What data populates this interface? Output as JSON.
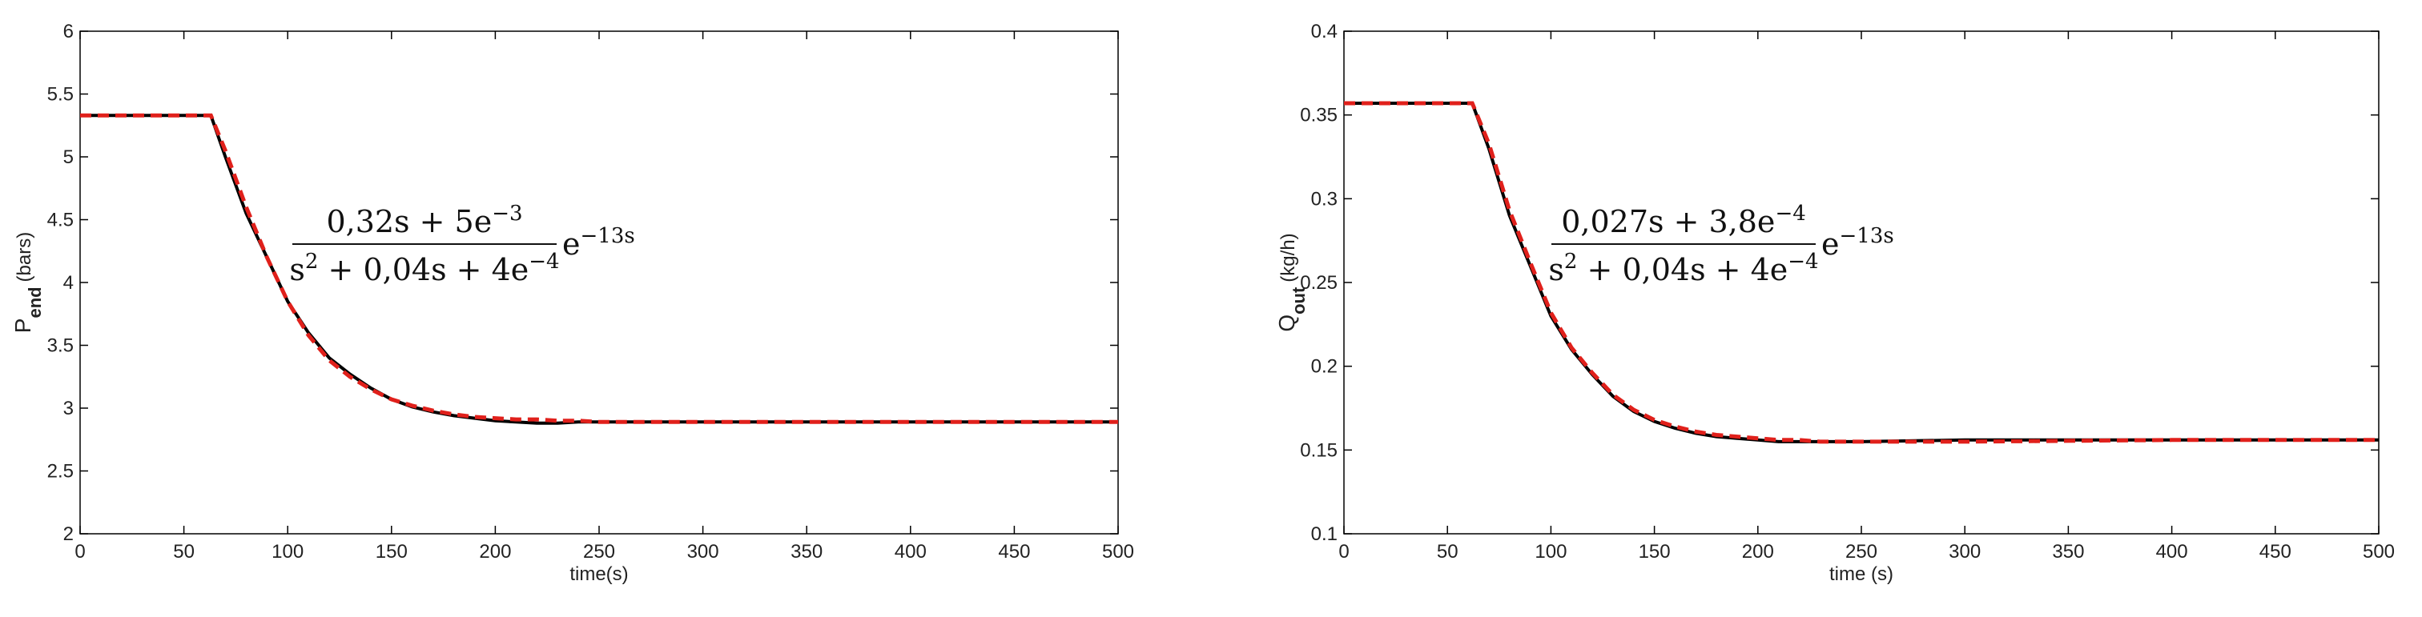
{
  "chart_data": [
    {
      "type": "line",
      "xlabel": "time(s)",
      "ylabel": {
        "main": "P",
        "sub": "end",
        "unit": "(bars)"
      },
      "annotation": {
        "numerator": [
          {
            "text": "0,32s + 5e",
            "sup": "−3"
          }
        ],
        "denominator": [
          {
            "text": "s",
            "sup": "2"
          },
          {
            "text": " + 0,04s + 4e",
            "sup": "−4"
          }
        ],
        "factor": [
          {
            "text": "e",
            "sup": "−13s"
          }
        ]
      },
      "x": [
        0,
        63,
        70,
        80,
        90,
        100,
        110,
        120,
        130,
        140,
        150,
        160,
        170,
        180,
        190,
        200,
        210,
        220,
        230,
        240,
        250,
        300,
        400,
        500
      ],
      "series": [
        {
          "color": "#000000",
          "style": "solid",
          "values": [
            5.33,
            5.33,
            5.0,
            4.55,
            4.2,
            3.85,
            3.6,
            3.4,
            3.27,
            3.16,
            3.07,
            3.01,
            2.97,
            2.94,
            2.92,
            2.9,
            2.89,
            2.88,
            2.88,
            2.89,
            2.89,
            2.89,
            2.89,
            2.89
          ]
        },
        {
          "color": "#e0201b",
          "style": "dashed",
          "values": [
            5.33,
            5.33,
            5.05,
            4.6,
            4.2,
            3.85,
            3.58,
            3.38,
            3.25,
            3.15,
            3.07,
            3.02,
            2.98,
            2.95,
            2.93,
            2.92,
            2.91,
            2.91,
            2.9,
            2.9,
            2.89,
            2.89,
            2.89,
            2.89
          ]
        }
      ],
      "xlim": [
        0,
        500
      ],
      "xticks": [
        0,
        50,
        100,
        150,
        200,
        250,
        300,
        350,
        400,
        450,
        500
      ],
      "ylim": [
        2,
        6
      ],
      "yticks": [
        2,
        2.5,
        3,
        3.5,
        4,
        4.5,
        5,
        5.5,
        6
      ]
    },
    {
      "type": "line",
      "xlabel": "time (s)",
      "ylabel": {
        "main": "Q",
        "sub": "out",
        "unit": "(kg/h)"
      },
      "annotation": {
        "numerator": [
          {
            "text": "0,027s + 3,8e",
            "sup": "−4"
          }
        ],
        "denominator": [
          {
            "text": "s",
            "sup": "2"
          },
          {
            "text": " + 0,04s + 4e",
            "sup": "−4"
          }
        ],
        "factor": [
          {
            "text": "e",
            "sup": "−13s"
          }
        ]
      },
      "x": [
        0,
        62,
        70,
        80,
        90,
        100,
        110,
        120,
        130,
        140,
        150,
        160,
        170,
        180,
        190,
        200,
        210,
        220,
        230,
        240,
        250,
        300,
        400,
        500
      ],
      "series": [
        {
          "color": "#000000",
          "style": "solid",
          "values": [
            0.357,
            0.357,
            0.33,
            0.29,
            0.26,
            0.23,
            0.21,
            0.195,
            0.182,
            0.173,
            0.167,
            0.163,
            0.16,
            0.158,
            0.157,
            0.156,
            0.155,
            0.155,
            0.155,
            0.155,
            0.155,
            0.156,
            0.156,
            0.156
          ]
        },
        {
          "color": "#e0201b",
          "style": "dashed",
          "values": [
            0.357,
            0.357,
            0.333,
            0.293,
            0.262,
            0.232,
            0.211,
            0.196,
            0.183,
            0.174,
            0.168,
            0.164,
            0.161,
            0.159,
            0.158,
            0.157,
            0.156,
            0.156,
            0.155,
            0.155,
            0.155,
            0.155,
            0.156,
            0.156
          ]
        }
      ],
      "xlim": [
        0,
        500
      ],
      "xticks": [
        0,
        50,
        100,
        150,
        200,
        250,
        300,
        350,
        400,
        450,
        500
      ],
      "ylim": [
        0.1,
        0.4
      ],
      "yticks": [
        0.1,
        0.15,
        0.2,
        0.25,
        0.3,
        0.35,
        0.4
      ]
    }
  ]
}
